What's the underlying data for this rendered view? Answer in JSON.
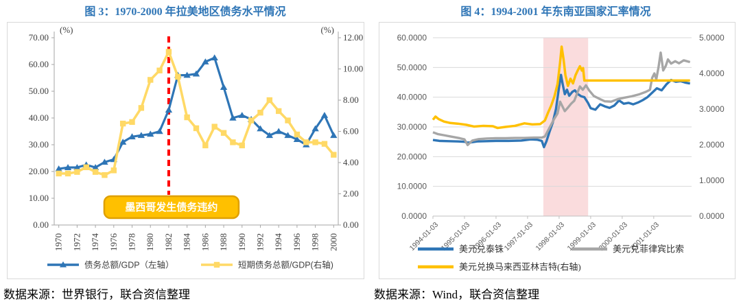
{
  "chart_data": [
    {
      "type": "line",
      "title": "图 3：1970-2000 年拉美地区债务水平情况",
      "title_color": "#2E75B6",
      "source": "数据来源：世界银行，联合资信整理",
      "categories": [
        1970,
        1971,
        1972,
        1973,
        1974,
        1975,
        1976,
        1977,
        1978,
        1979,
        1980,
        1981,
        1982,
        1983,
        1984,
        1985,
        1986,
        1987,
        1988,
        1989,
        1990,
        1991,
        1992,
        1993,
        1994,
        1995,
        1996,
        1997,
        1998,
        1999,
        2000
      ],
      "x_tick_labels": [
        "1970",
        "1972",
        "1974",
        "1976",
        "1978",
        "1980",
        "1982",
        "1984",
        "1986",
        "1988",
        "1990",
        "1992",
        "1994",
        "1996",
        "1998",
        "2000"
      ],
      "axes": {
        "left": {
          "label": "(%)",
          "min": 0,
          "max": 70,
          "step": 10,
          "decimals": 2
        },
        "right": {
          "label": "(%)",
          "min": 0,
          "max": 12,
          "step": 2,
          "decimals": 2
        }
      },
      "grid": false,
      "legend_position": "bottom",
      "series": [
        {
          "name": "债务总额/GDP（左轴）",
          "axis": "left",
          "color": "#2E75B6",
          "marker": "triangle",
          "width": 3.2,
          "values": [
            21,
            21.5,
            21.5,
            22.5,
            21.5,
            23.5,
            24.5,
            31,
            33,
            33.5,
            34,
            35,
            43,
            56,
            56,
            56.5,
            61,
            62.5,
            51.5,
            40,
            41,
            39.5,
            36,
            33.5,
            35,
            33.5,
            32,
            30,
            36,
            41,
            33.5
          ]
        },
        {
          "name": "短期债务总额/GDP(右轴)",
          "axis": "right",
          "color": "#FFD966",
          "marker": "square",
          "width": 3.6,
          "values": [
            3.3,
            3.3,
            3.4,
            3.7,
            3.4,
            3.2,
            3.5,
            6.5,
            6.6,
            7.5,
            9.3,
            9.9,
            11.1,
            9.5,
            6.9,
            6.2,
            5.1,
            6.3,
            5.9,
            5.3,
            5.1,
            6.7,
            7.2,
            8.0,
            7.3,
            6.7,
            5.8,
            5.3,
            5.3,
            5.2,
            4.5
          ]
        }
      ],
      "event_line": {
        "x_year": 1982,
        "color": "#FF0000",
        "style": "dashed"
      },
      "annotation": {
        "text": "墨西哥发生债务违约",
        "fill": "#FFC000",
        "border": "#DFA000",
        "text_color": "#FFFFFF"
      }
    },
    {
      "type": "line",
      "title": "图 4：1994-2001 年东南亚国家汇率情况",
      "title_color": "#2E75B6",
      "source": "数据来源：Wind，联合资信整理",
      "x": {
        "min": 1994,
        "max": 2002.2,
        "tick_years": [
          1994,
          1995,
          1996,
          1997,
          1998,
          1999,
          2000,
          2001
        ],
        "tick_labels": [
          "1994-01-03",
          "1995-01-03",
          "1996-01-03",
          "1997-01-03",
          "1998-01-03",
          "1999-01-03",
          "2000-01-03",
          "2001-01-03"
        ]
      },
      "axes": {
        "left": {
          "min": 0,
          "max": 60,
          "step": 10,
          "decimals": 4
        },
        "right": {
          "min": 0,
          "max": 5,
          "step": 1,
          "decimals": 4
        }
      },
      "grid": true,
      "grid_color": "#D9D9D9",
      "band": {
        "from": 1997.5,
        "to": 1998.92,
        "color": "#FADCDD"
      },
      "legend_rows": [
        [
          0,
          1
        ],
        [
          2
        ]
      ],
      "series": [
        {
          "name": "美元兑泰铢",
          "axis": "left",
          "color": "#2E75B6",
          "width": 3.4,
          "points": [
            [
              1994.0,
              25.6
            ],
            [
              1994.2,
              25.3
            ],
            [
              1994.5,
              25.2
            ],
            [
              1994.8,
              25.1
            ],
            [
              1995.0,
              25.0
            ],
            [
              1995.1,
              24.7
            ],
            [
              1995.2,
              24.8
            ],
            [
              1995.4,
              25.1
            ],
            [
              1995.7,
              25.2
            ],
            [
              1996.0,
              25.3
            ],
            [
              1996.4,
              25.3
            ],
            [
              1996.8,
              25.4
            ],
            [
              1997.1,
              25.8
            ],
            [
              1997.3,
              25.7
            ],
            [
              1997.45,
              25.3
            ],
            [
              1997.52,
              23.2
            ],
            [
              1997.6,
              25.2
            ],
            [
              1997.7,
              28.5
            ],
            [
              1997.8,
              31.5
            ],
            [
              1997.9,
              36.0
            ],
            [
              1997.98,
              42.0
            ],
            [
              1998.06,
              47.5
            ],
            [
              1998.12,
              44.0
            ],
            [
              1998.18,
              41.0
            ],
            [
              1998.25,
              42.5
            ],
            [
              1998.32,
              40.5
            ],
            [
              1998.42,
              41.8
            ],
            [
              1998.5,
              42.3
            ],
            [
              1998.6,
              41.0
            ],
            [
              1998.7,
              40.3
            ],
            [
              1998.8,
              40.0
            ],
            [
              1998.92,
              38.0
            ],
            [
              1999.0,
              36.3
            ],
            [
              1999.15,
              35.8
            ],
            [
              1999.3,
              37.6
            ],
            [
              1999.45,
              36.9
            ],
            [
              1999.6,
              36.4
            ],
            [
              1999.75,
              37.2
            ],
            [
              1999.9,
              38.9
            ],
            [
              2000.05,
              37.8
            ],
            [
              2000.2,
              38.1
            ],
            [
              2000.35,
              37.6
            ],
            [
              2000.5,
              38.2
            ],
            [
              2000.65,
              39.0
            ],
            [
              2000.8,
              40.0
            ],
            [
              2000.95,
              41.5
            ],
            [
              2001.1,
              43.0
            ],
            [
              2001.25,
              42.3
            ],
            [
              2001.4,
              44.3
            ],
            [
              2001.55,
              45.8
            ],
            [
              2001.7,
              45.2
            ],
            [
              2001.85,
              45.4
            ],
            [
              2002.0,
              44.9
            ],
            [
              2002.15,
              44.6
            ]
          ]
        },
        {
          "name": "美元兑菲律宾比索",
          "axis": "left",
          "color": "#A6A6A6",
          "width": 3.4,
          "points": [
            [
              1994.0,
              28.2
            ],
            [
              1994.15,
              27.6
            ],
            [
              1994.35,
              27.2
            ],
            [
              1994.6,
              26.7
            ],
            [
              1994.85,
              26.2
            ],
            [
              1995.0,
              25.8
            ],
            [
              1995.1,
              23.9
            ],
            [
              1995.25,
              25.4
            ],
            [
              1995.45,
              25.9
            ],
            [
              1995.7,
              26.1
            ],
            [
              1996.0,
              26.2
            ],
            [
              1996.3,
              26.2
            ],
            [
              1996.6,
              26.3
            ],
            [
              1996.9,
              26.3
            ],
            [
              1997.2,
              26.4
            ],
            [
              1997.45,
              26.4
            ],
            [
              1997.55,
              26.8
            ],
            [
              1997.65,
              28.8
            ],
            [
              1997.75,
              30.8
            ],
            [
              1997.85,
              32.8
            ],
            [
              1997.95,
              34.5
            ],
            [
              1998.03,
              38.5
            ],
            [
              1998.1,
              37.0
            ],
            [
              1998.18,
              35.3
            ],
            [
              1998.28,
              36.5
            ],
            [
              1998.38,
              37.8
            ],
            [
              1998.48,
              38.8
            ],
            [
              1998.58,
              41.5
            ],
            [
              1998.66,
              43.6
            ],
            [
              1998.75,
              42.5
            ],
            [
              1998.85,
              44.0
            ],
            [
              1998.95,
              42.3
            ],
            [
              1999.1,
              40.4
            ],
            [
              1999.25,
              39.6
            ],
            [
              1999.45,
              38.6
            ],
            [
              1999.65,
              38.5
            ],
            [
              1999.85,
              39.3
            ],
            [
              2000.05,
              39.8
            ],
            [
              2000.3,
              40.3
            ],
            [
              2000.55,
              41.0
            ],
            [
              2000.75,
              41.8
            ],
            [
              2000.88,
              42.5
            ],
            [
              2000.95,
              46.5
            ],
            [
              2001.02,
              48.0
            ],
            [
              2001.08,
              46.0
            ],
            [
              2001.15,
              50.0
            ],
            [
              2001.22,
              55.0
            ],
            [
              2001.3,
              49.0
            ],
            [
              2001.38,
              50.5
            ],
            [
              2001.45,
              52.7
            ],
            [
              2001.55,
              51.3
            ],
            [
              2001.68,
              52.1
            ],
            [
              2001.8,
              51.4
            ],
            [
              2001.95,
              52.4
            ],
            [
              2002.15,
              51.8
            ]
          ]
        },
        {
          "name": "美元兑换马来西亚林吉特(右轴)",
          "axis": "right",
          "color": "#FFC000",
          "width": 3.5,
          "points": [
            [
              1994.0,
              2.7
            ],
            [
              1994.08,
              2.79
            ],
            [
              1994.18,
              2.72
            ],
            [
              1994.35,
              2.65
            ],
            [
              1994.55,
              2.61
            ],
            [
              1994.8,
              2.59
            ],
            [
              1995.05,
              2.56
            ],
            [
              1995.3,
              2.51
            ],
            [
              1995.6,
              2.53
            ],
            [
              1995.9,
              2.52
            ],
            [
              1996.05,
              2.47
            ],
            [
              1996.3,
              2.5
            ],
            [
              1996.6,
              2.53
            ],
            [
              1996.9,
              2.6
            ],
            [
              1997.15,
              2.57
            ],
            [
              1997.4,
              2.58
            ],
            [
              1997.55,
              2.68
            ],
            [
              1997.65,
              2.9
            ],
            [
              1997.75,
              3.1
            ],
            [
              1997.85,
              3.35
            ],
            [
              1997.95,
              3.7
            ],
            [
              1998.03,
              4.3
            ],
            [
              1998.08,
              4.75
            ],
            [
              1998.14,
              4.4
            ],
            [
              1998.2,
              3.95
            ],
            [
              1998.28,
              3.65
            ],
            [
              1998.36,
              3.85
            ],
            [
              1998.44,
              3.72
            ],
            [
              1998.52,
              3.95
            ],
            [
              1998.6,
              4.1
            ],
            [
              1998.66,
              4.2
            ],
            [
              1998.72,
              4.08
            ],
            [
              1998.76,
              4.15
            ],
            [
              1998.8,
              3.8
            ],
            [
              2002.15,
              3.8
            ]
          ]
        }
      ]
    }
  ],
  "colors": {
    "title_blue": "#2E75B6",
    "axis_text": "#404040",
    "spine": "#A6A6A6",
    "gridline": "#D9D9D9",
    "box_border": "#D9D9D9"
  }
}
